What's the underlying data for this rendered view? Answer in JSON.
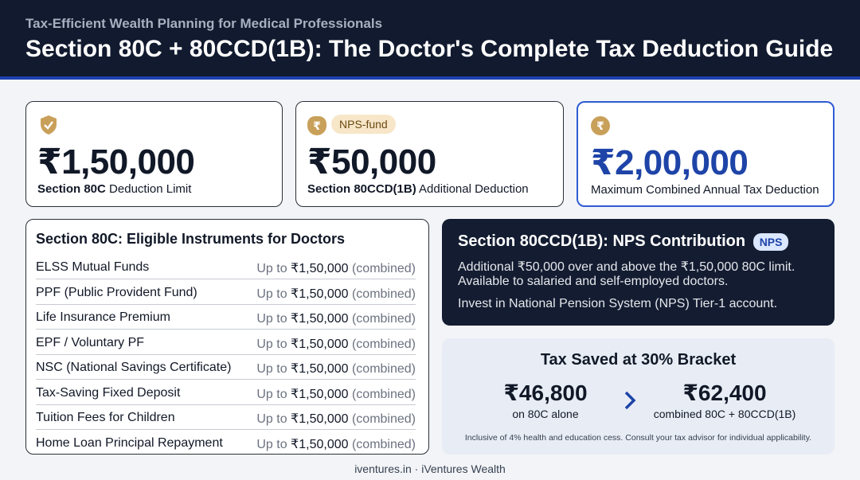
{
  "header": {
    "subtitle": "Tax-Efficient Wealth Planning for Medical Professionals",
    "title": "Section 80C + 80CCD(1B): The Doctor's Complete Tax Deduction Guide"
  },
  "cards": [
    {
      "amount": "₹1,50,000",
      "label_bold": "Section 80C",
      "label": "Deduction Limit"
    },
    {
      "icon": "₹",
      "badge": "NPS-fund",
      "amount": "₹50,000",
      "label_bold": "Section 80CCD(1B)",
      "label": "Additional Deduction"
    },
    {
      "icon": "₹",
      "amount": "₹2,00,000",
      "label": "Maximum Combined Annual Tax Deduction"
    }
  ],
  "instruments": {
    "title": "Section 80C: Eligible Instruments for Doctors",
    "rows": [
      {
        "name": "ELSS Mutual Funds",
        "prefix": "Up to",
        "limit": "₹1,50,000",
        "note": "(combined)"
      },
      {
        "name": "PPF (Public Provident Fund)",
        "prefix": "Up to",
        "limit": "₹1,50,000",
        "note": "(combined)"
      },
      {
        "name": "Life Insurance Premium",
        "prefix": "Up to",
        "limit": "₹1,50,000",
        "note": "(combined)"
      },
      {
        "name": "EPF / Voluntary PF",
        "prefix": "Up to",
        "limit": "₹1,50,000",
        "note": "(combined)"
      },
      {
        "name": "NSC (National Savings Certificate)",
        "prefix": "Up to",
        "limit": "₹1,50,000",
        "note": "(combined)"
      },
      {
        "name": "Tax-Saving Fixed Deposit",
        "prefix": "Up to",
        "limit": "₹1,50,000",
        "note": "(combined)"
      },
      {
        "name": "Tuition Fees for Children",
        "prefix": "Up to",
        "limit": "₹1,50,000",
        "note": "(combined)"
      },
      {
        "name": "Home Loan Principal Repayment",
        "prefix": "Up to",
        "limit": "₹1,50,000",
        "note": "(combined)"
      }
    ]
  },
  "nps": {
    "title": "Section 80CCD(1B): NPS Contribution",
    "badge": "NPS",
    "lines": [
      "Additional ₹50,000 over and above the ₹1,50,000 80C limit.",
      "Available to salaried and self-employed doctors.",
      "Invest in National Pension System (NPS) Tier-1 account."
    ]
  },
  "savings": {
    "title": "Tax Saved at 30% Bracket",
    "items": [
      {
        "amount": "₹46,800",
        "label": "on 80C alone"
      },
      {
        "amount": "₹62,400",
        "label": "combined 80C + 80CCD(1B)"
      }
    ],
    "footnote": "Inclusive of 4% health and education cess. Consult your tax advisor for individual applicability."
  },
  "footer": "iventures.in · iVentures Wealth"
}
